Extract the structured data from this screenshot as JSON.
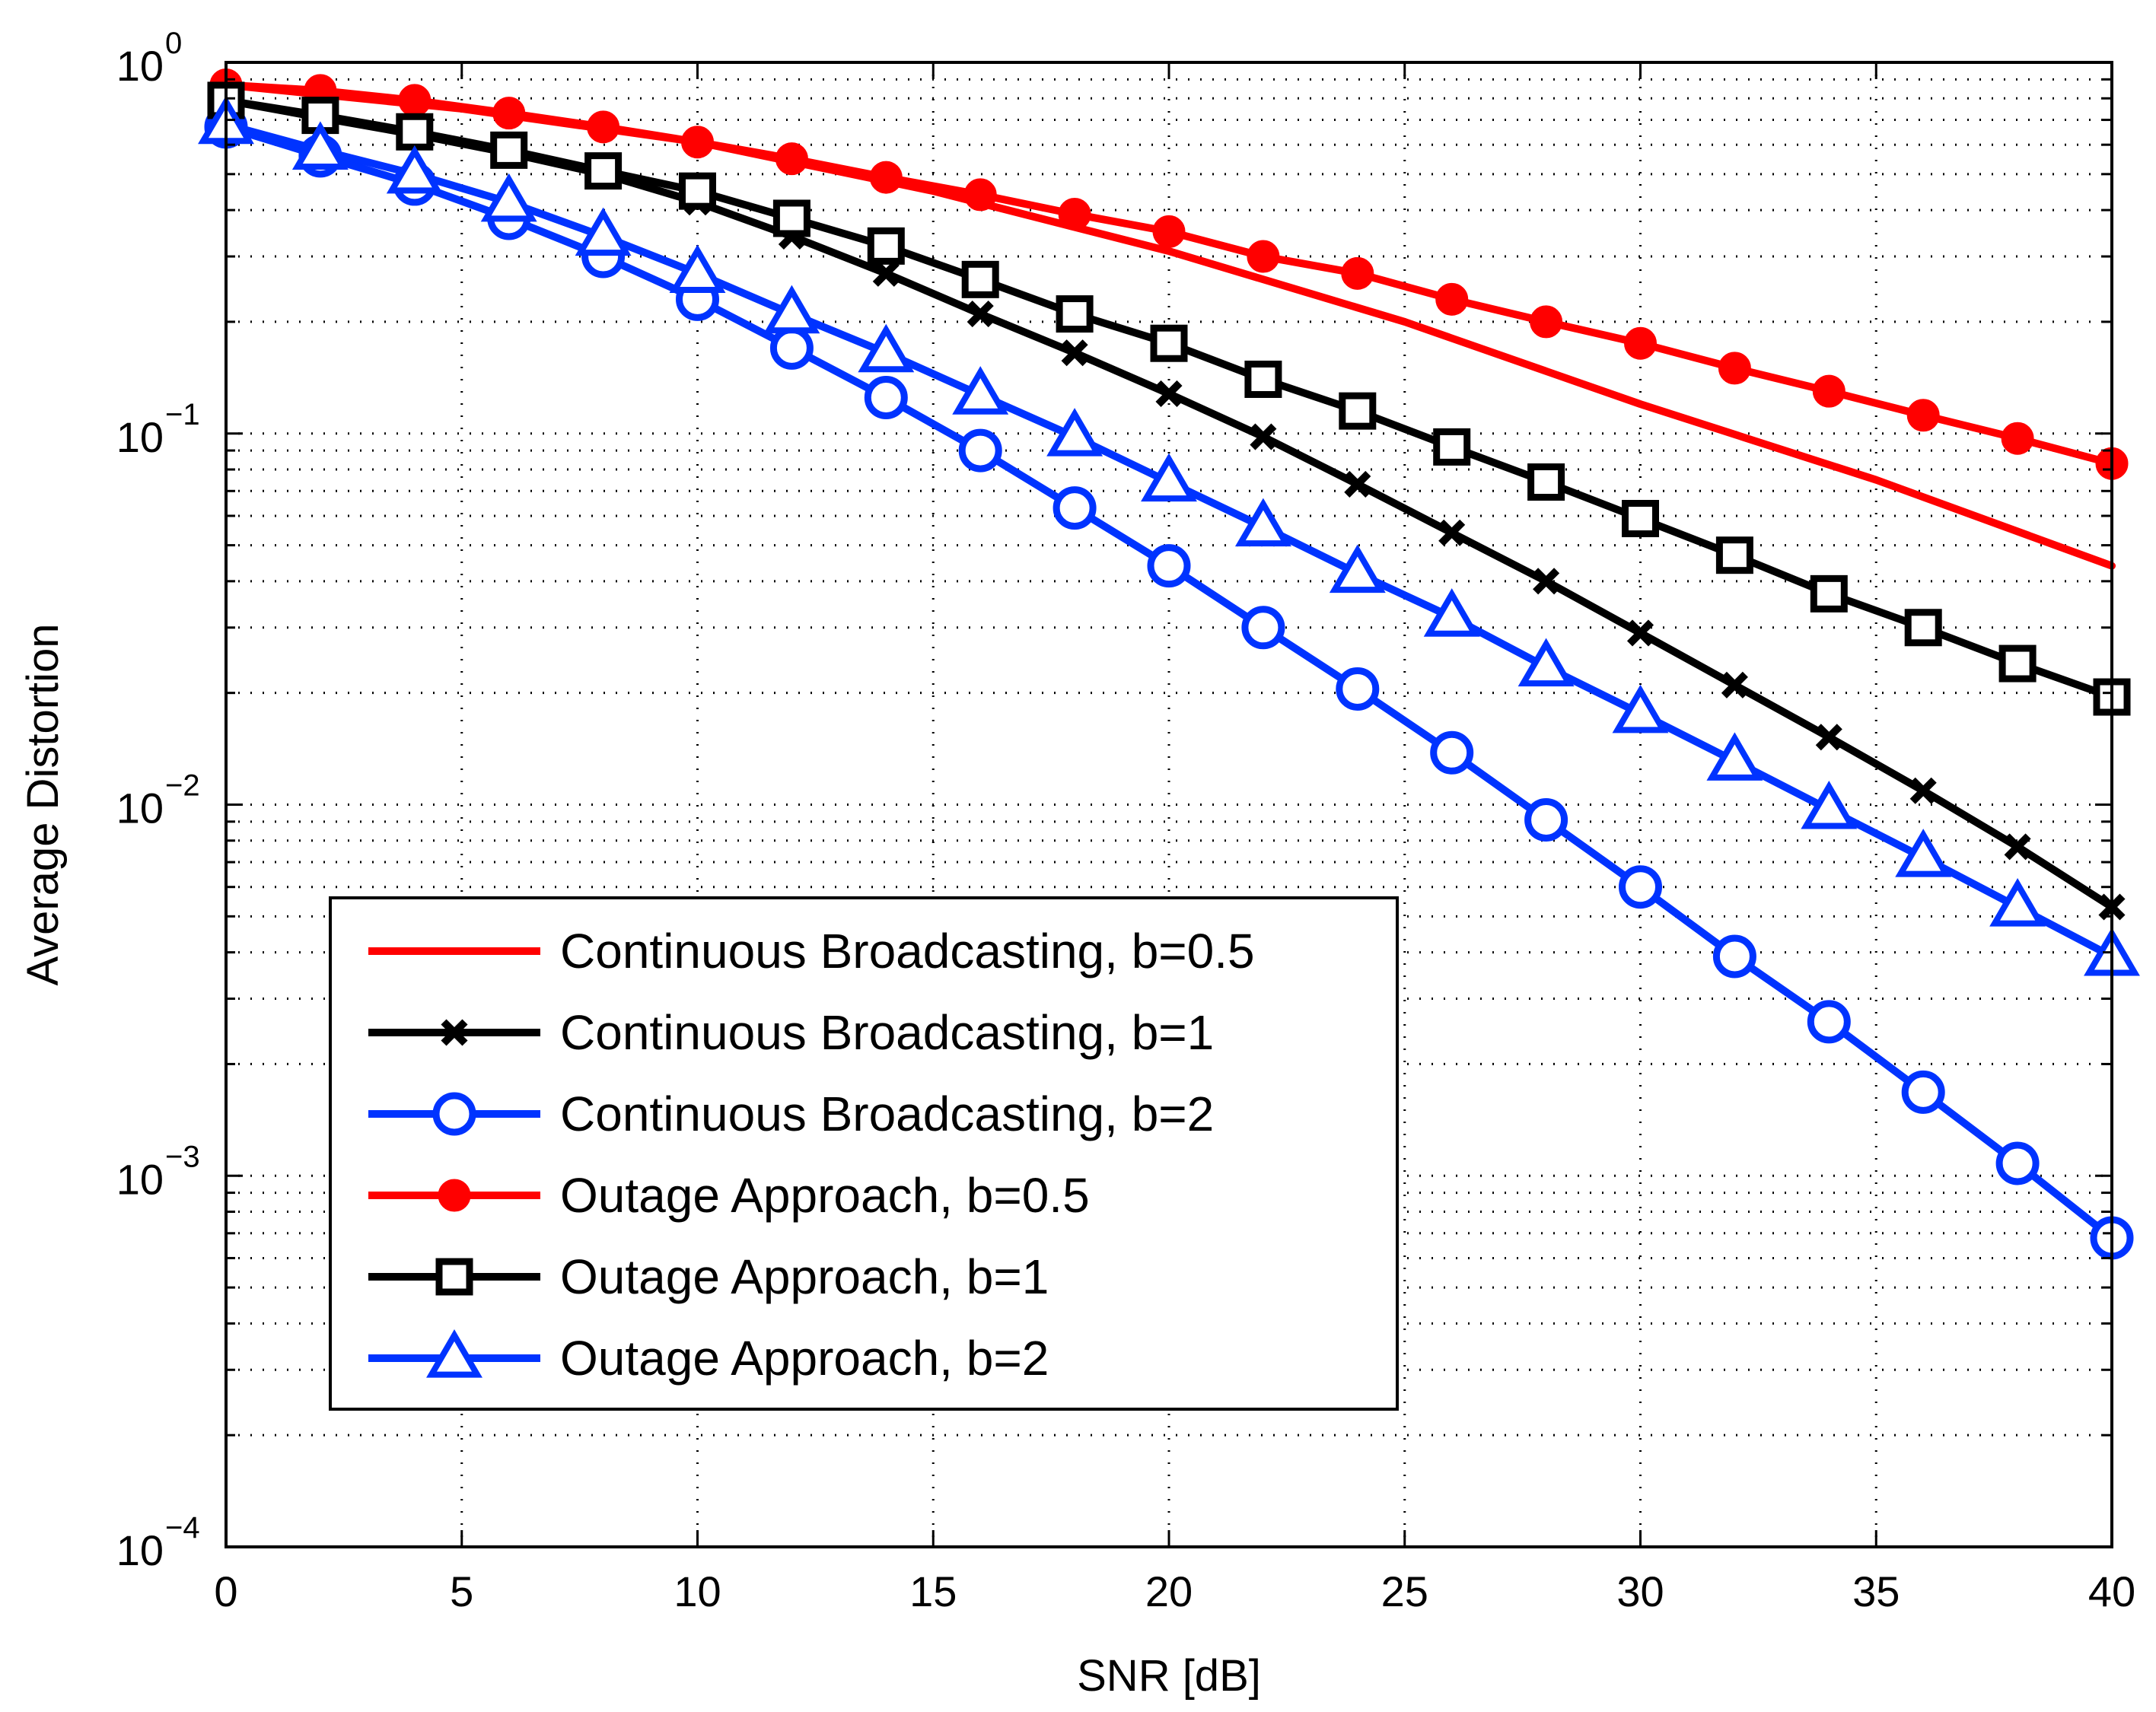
{
  "chart_data": {
    "type": "line",
    "title": "",
    "xlabel": "SNR [dB]",
    "ylabel": "Average Distortion",
    "xlim": [
      0,
      40
    ],
    "ylim": [
      0.0001,
      1
    ],
    "yscale": "log",
    "grid": true,
    "x_ticks": [
      0,
      5,
      10,
      15,
      20,
      25,
      30,
      35,
      40
    ],
    "x_tick_labels": [
      "0",
      "5",
      "10",
      "15",
      "20",
      "25",
      "30",
      "35",
      "40"
    ],
    "y_tick_labels": [
      {
        "base": "10",
        "exp": "0"
      },
      {
        "base": "10",
        "exp": "−1"
      },
      {
        "base": "10",
        "exp": "−2"
      },
      {
        "base": "10",
        "exp": "−3"
      },
      {
        "base": "10",
        "exp": "−4"
      }
    ],
    "legend_position": "lower-left",
    "series": [
      {
        "name": "Continuous Broadcasting, b=0.5",
        "color": "#ff0000",
        "marker": "none",
        "x": [
          0,
          5,
          10,
          15,
          20,
          25,
          30,
          35,
          40
        ],
        "values": [
          0.87,
          0.75,
          0.61,
          0.45,
          0.31,
          0.2,
          0.12,
          0.075,
          0.044
        ]
      },
      {
        "name": "Continuous Broadcasting, b=1",
        "color": "#000000",
        "marker": "x",
        "x": [
          0,
          2,
          4,
          6,
          8,
          10,
          12,
          14,
          16,
          18,
          20,
          22,
          24,
          26,
          28,
          30,
          32,
          34,
          36,
          38,
          40
        ],
        "values": [
          0.79,
          0.71,
          0.64,
          0.57,
          0.5,
          0.42,
          0.34,
          0.27,
          0.21,
          0.165,
          0.128,
          0.098,
          0.073,
          0.054,
          0.04,
          0.029,
          0.021,
          0.0152,
          0.0109,
          0.0077,
          0.0053
        ]
      },
      {
        "name": "Continuous Broadcasting, b=2",
        "color": "#0033ff",
        "marker": "circle",
        "x": [
          0,
          2,
          4,
          6,
          8,
          10,
          12,
          14,
          16,
          18,
          20,
          22,
          24,
          26,
          28,
          30,
          32,
          34,
          36,
          38,
          40
        ],
        "values": [
          0.67,
          0.56,
          0.47,
          0.38,
          0.3,
          0.23,
          0.17,
          0.125,
          0.09,
          0.063,
          0.044,
          0.03,
          0.0205,
          0.0138,
          0.0091,
          0.006,
          0.0039,
          0.0026,
          0.00168,
          0.00108,
          0.00068
        ]
      },
      {
        "name": "Outage Approach, b=0.5",
        "color": "#ff0000",
        "marker": "dot",
        "x": [
          0,
          2,
          4,
          6,
          8,
          10,
          12,
          14,
          16,
          18,
          20,
          22,
          24,
          26,
          28,
          30,
          32,
          34,
          36,
          38,
          40
        ],
        "values": [
          0.87,
          0.84,
          0.79,
          0.73,
          0.67,
          0.61,
          0.55,
          0.49,
          0.44,
          0.39,
          0.35,
          0.3,
          0.27,
          0.23,
          0.2,
          0.175,
          0.15,
          0.13,
          0.112,
          0.097,
          0.083
        ]
      },
      {
        "name": "Outage Approach, b=1",
        "color": "#000000",
        "marker": "square",
        "x": [
          0,
          2,
          4,
          6,
          8,
          10,
          12,
          14,
          16,
          18,
          20,
          22,
          24,
          26,
          28,
          30,
          32,
          34,
          36,
          38,
          40
        ],
        "values": [
          0.79,
          0.72,
          0.65,
          0.58,
          0.51,
          0.45,
          0.38,
          0.32,
          0.26,
          0.21,
          0.175,
          0.14,
          0.115,
          0.092,
          0.074,
          0.059,
          0.047,
          0.037,
          0.03,
          0.024,
          0.0195
        ]
      },
      {
        "name": "Outage Approach, b=2",
        "color": "#0033ff",
        "marker": "triangle",
        "x": [
          0,
          2,
          4,
          6,
          8,
          10,
          12,
          14,
          16,
          18,
          20,
          22,
          24,
          26,
          28,
          30,
          32,
          34,
          36,
          38,
          40
        ],
        "values": [
          0.68,
          0.58,
          0.5,
          0.42,
          0.34,
          0.27,
          0.21,
          0.165,
          0.127,
          0.098,
          0.074,
          0.056,
          0.042,
          0.032,
          0.0235,
          0.0176,
          0.0131,
          0.0097,
          0.0072,
          0.0053,
          0.0039
        ]
      }
    ]
  }
}
